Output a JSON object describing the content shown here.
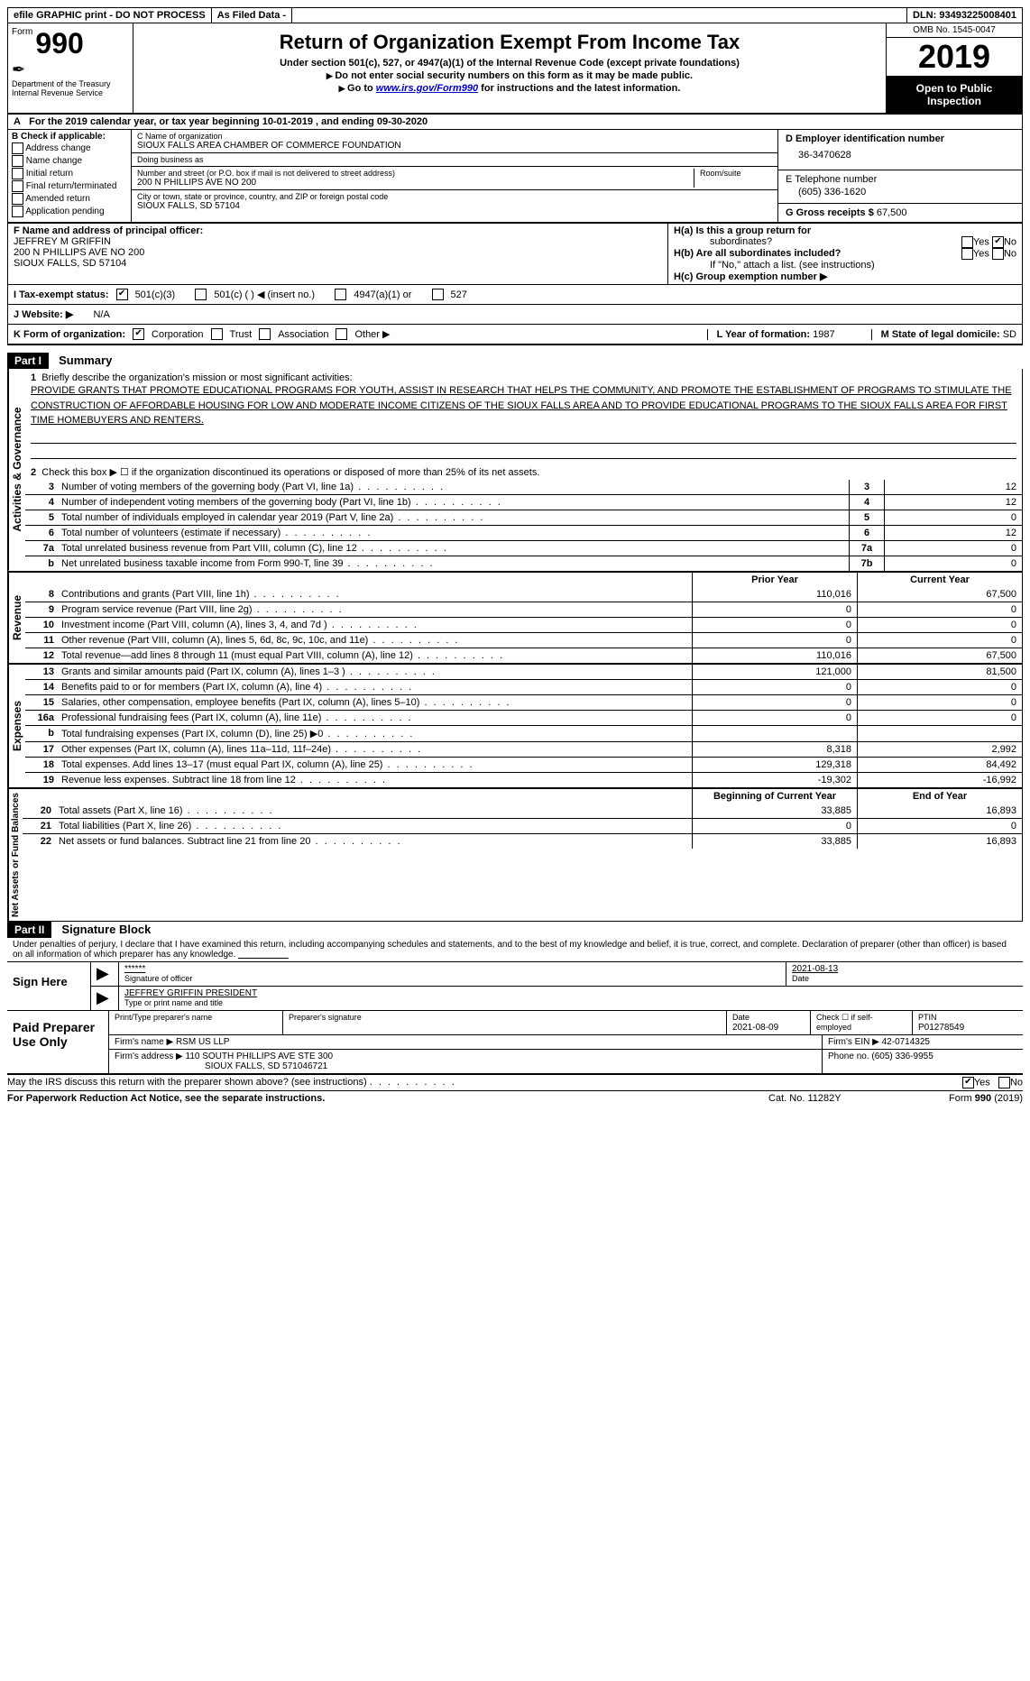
{
  "topbar": {
    "efile": "efile GRAPHIC print - DO NOT PROCESS",
    "asfiled": "As Filed Data -",
    "dln_label": "DLN:",
    "dln": "93493225008401"
  },
  "header": {
    "form_word": "Form",
    "form_num": "990",
    "dept1": "Department of the Treasury",
    "dept2": "Internal Revenue Service",
    "title": "Return of Organization Exempt From Income Tax",
    "sub1": "Under section 501(c), 527, or 4947(a)(1) of the Internal Revenue Code (except private foundations)",
    "sub2": "Do not enter social security numbers on this form as it may be made public.",
    "sub3_pre": "Go to ",
    "sub3_link": "www.irs.gov/Form990",
    "sub3_post": " for instructions and the latest information.",
    "omb": "OMB No. 1545-0047",
    "year": "2019",
    "open1": "Open to Public",
    "open2": "Inspection"
  },
  "row_a": {
    "label": "A",
    "text": "For the 2019 calendar year, or tax year beginning 10-01-2019   , and ending 09-30-2020"
  },
  "col_b": {
    "label": "B Check if applicable:",
    "items": [
      "Address change",
      "Name change",
      "Initial return",
      "Final return/terminated",
      "Amended return",
      "Application pending"
    ]
  },
  "col_c": {
    "name_label": "C Name of organization",
    "name": "SIOUX FALLS AREA CHAMBER OF COMMERCE FOUNDATION",
    "dba_label": "Doing business as",
    "dba": "",
    "addr_label": "Number and street (or P.O. box if mail is not delivered to street address)",
    "room_label": "Room/suite",
    "addr": "200 N PHILLIPS AVE NO 200",
    "city_label": "City or town, state or province, country, and ZIP or foreign postal code",
    "city": "SIOUX FALLS, SD  57104"
  },
  "col_d": {
    "ein_label": "D Employer identification number",
    "ein": "36-3470628",
    "tel_label": "E Telephone number",
    "tel": "(605) 336-1620",
    "gross_label": "G Gross receipts $",
    "gross": "67,500"
  },
  "row_f": {
    "label": "F  Name and address of principal officer:",
    "l1": "JEFFREY M GRIFFIN",
    "l2": "200 N PHILLIPS AVE NO 200",
    "l3": "SIOUX FALLS, SD  57104"
  },
  "row_h": {
    "ha": "H(a)  Is this a group return for",
    "ha2": "subordinates?",
    "hb": "H(b)  Are all subordinates included?",
    "hb2": "If \"No,\" attach a list. (see instructions)",
    "hc": "H(c)  Group exemption number ▶",
    "yes": "Yes",
    "no": "No"
  },
  "row_i": {
    "label": "I  Tax-exempt status:",
    "o1": "501(c)(3)",
    "o2": "501(c) (   ) ◀ (insert no.)",
    "o3": "4947(a)(1) or",
    "o4": "527"
  },
  "row_j": {
    "label": "J  Website: ▶",
    "val": "N/A"
  },
  "row_k": {
    "label": "K Form of organization:",
    "o1": "Corporation",
    "o2": "Trust",
    "o3": "Association",
    "o4": "Other ▶",
    "l_label": "L Year of formation:",
    "l_val": "1987",
    "m_label": "M State of legal domicile:",
    "m_val": "SD"
  },
  "part1": {
    "hdr": "Part I",
    "title": "Summary",
    "q1_label": "1",
    "q1": "Briefly describe the organization's mission or most significant activities:",
    "mission": "PROVIDE GRANTS THAT PROMOTE EDUCATIONAL PROGRAMS FOR YOUTH, ASSIST IN RESEARCH THAT HELPS THE COMMUNITY, AND PROMOTE THE ESTABLISHMENT OF PROGRAMS TO STIMULATE THE CONSTRUCTION OF AFFORDABLE HOUSING FOR LOW AND MODERATE INCOME CITIZENS OF THE SIOUX FALLS AREA AND TO PROVIDE EDUCATIONAL PROGRAMS TO THE SIOUX FALLS AREA FOR FIRST TIME HOMEBUYERS AND RENTERS.",
    "q2": "Check this box ▶ ☐ if the organization discontinued its operations or disposed of more than 25% of its net assets.",
    "tabs": {
      "act": "Activities & Governance",
      "rev": "Revenue",
      "exp": "Expenses",
      "net": "Net Assets or Fund Balances"
    },
    "lines_single": [
      {
        "n": "3",
        "t": "Number of voting members of the governing body (Part VI, line 1a)",
        "b": "3",
        "v": "12"
      },
      {
        "n": "4",
        "t": "Number of independent voting members of the governing body (Part VI, line 1b)",
        "b": "4",
        "v": "12"
      },
      {
        "n": "5",
        "t": "Total number of individuals employed in calendar year 2019 (Part V, line 2a)",
        "b": "5",
        "v": "0"
      },
      {
        "n": "6",
        "t": "Total number of volunteers (estimate if necessary)",
        "b": "6",
        "v": "12"
      },
      {
        "n": "7a",
        "t": "Total unrelated business revenue from Part VIII, column (C), line 12",
        "b": "7a",
        "v": "0"
      },
      {
        "n": "b",
        "t": "Net unrelated business taxable income from Form 990-T, line 39",
        "b": "7b",
        "v": "0"
      }
    ],
    "hdr_prior": "Prior Year",
    "hdr_current": "Current Year",
    "lines_rev": [
      {
        "n": "8",
        "t": "Contributions and grants (Part VIII, line 1h)",
        "p": "110,016",
        "c": "67,500"
      },
      {
        "n": "9",
        "t": "Program service revenue (Part VIII, line 2g)",
        "p": "0",
        "c": "0"
      },
      {
        "n": "10",
        "t": "Investment income (Part VIII, column (A), lines 3, 4, and 7d )",
        "p": "0",
        "c": "0"
      },
      {
        "n": "11",
        "t": "Other revenue (Part VIII, column (A), lines 5, 6d, 8c, 9c, 10c, and 11e)",
        "p": "0",
        "c": "0"
      },
      {
        "n": "12",
        "t": "Total revenue—add lines 8 through 11 (must equal Part VIII, column (A), line 12)",
        "p": "110,016",
        "c": "67,500"
      }
    ],
    "lines_exp": [
      {
        "n": "13",
        "t": "Grants and similar amounts paid (Part IX, column (A), lines 1–3 )",
        "p": "121,000",
        "c": "81,500"
      },
      {
        "n": "14",
        "t": "Benefits paid to or for members (Part IX, column (A), line 4)",
        "p": "0",
        "c": "0"
      },
      {
        "n": "15",
        "t": "Salaries, other compensation, employee benefits (Part IX, column (A), lines 5–10)",
        "p": "0",
        "c": "0"
      },
      {
        "n": "16a",
        "t": "Professional fundraising fees (Part IX, column (A), line 11e)",
        "p": "0",
        "c": "0"
      },
      {
        "n": "b",
        "t": "Total fundraising expenses (Part IX, column (D), line 25) ▶0",
        "p": "",
        "c": ""
      },
      {
        "n": "17",
        "t": "Other expenses (Part IX, column (A), lines 11a–11d, 11f–24e)",
        "p": "8,318",
        "c": "2,992"
      },
      {
        "n": "18",
        "t": "Total expenses. Add lines 13–17 (must equal Part IX, column (A), line 25)",
        "p": "129,318",
        "c": "84,492"
      },
      {
        "n": "19",
        "t": "Revenue less expenses. Subtract line 18 from line 12",
        "p": "-19,302",
        "c": "-16,992"
      }
    ],
    "hdr_beg": "Beginning of Current Year",
    "hdr_end": "End of Year",
    "lines_net": [
      {
        "n": "20",
        "t": "Total assets (Part X, line 16)",
        "p": "33,885",
        "c": "16,893"
      },
      {
        "n": "21",
        "t": "Total liabilities (Part X, line 26)",
        "p": "0",
        "c": "0"
      },
      {
        "n": "22",
        "t": "Net assets or fund balances. Subtract line 21 from line 20",
        "p": "33,885",
        "c": "16,893"
      }
    ]
  },
  "part2": {
    "hdr": "Part II",
    "title": "Signature Block",
    "decl": "Under penalties of perjury, I declare that I have examined this return, including accompanying schedules and statements, and to the best of my knowledge and belief, it is true, correct, and complete. Declaration of preparer (other than officer) is based on all information of which preparer has any knowledge.",
    "sign_here": "Sign Here",
    "stars": "******",
    "sig_of_officer": "Signature of officer",
    "sig_date": "2021-08-13",
    "date_label": "Date",
    "officer_name": "JEFFREY GRIFFIN PRESIDENT",
    "type_label": "Type or print name and title",
    "paid": "Paid Preparer Use Only",
    "prep_name_label": "Print/Type preparer's name",
    "prep_sig_label": "Preparer's signature",
    "prep_date_label": "Date",
    "prep_date": "2021-08-09",
    "check_if": "Check ☐ if self-employed",
    "ptin_label": "PTIN",
    "ptin": "P01278549",
    "firm_name_label": "Firm's name    ▶",
    "firm_name": "RSM US LLP",
    "firm_ein_label": "Firm's EIN ▶",
    "firm_ein": "42-0714325",
    "firm_addr_label": "Firm's address ▶",
    "firm_addr1": "110 SOUTH PHILLIPS AVE STE 300",
    "firm_addr2": "SIOUX FALLS, SD  571046721",
    "phone_label": "Phone no.",
    "phone": "(605) 336-9955"
  },
  "footer": {
    "discuss": "May the IRS discuss this return with the preparer shown above? (see instructions)",
    "yes": "Yes",
    "no": "No",
    "paperwork": "For Paperwork Reduction Act Notice, see the separate instructions.",
    "cat": "Cat. No. 11282Y",
    "form": "Form 990 (2019)"
  }
}
